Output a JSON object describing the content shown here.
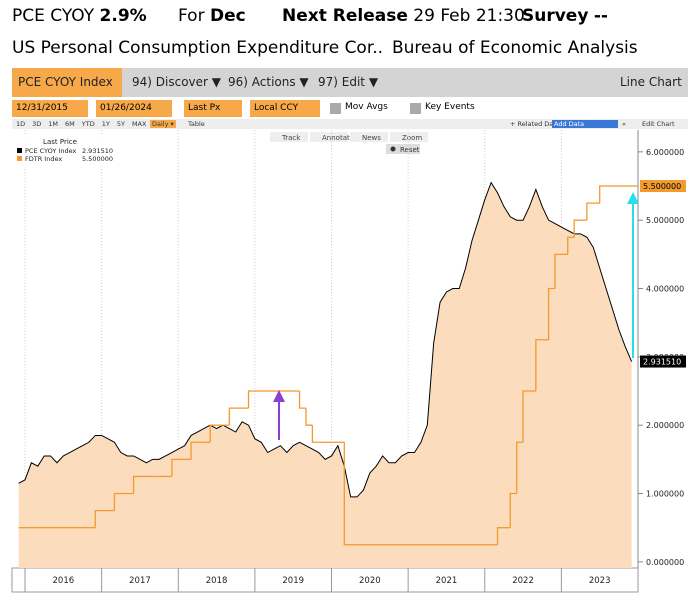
{
  "header": {
    "ticker": "PCE CYOY",
    "value": "2.9%",
    "for_label": "For",
    "period": "Dec",
    "next_release_label": "Next Release",
    "next_release": "29 Feb 21:30",
    "survey_label": "Survey",
    "survey": "--",
    "description": "US Personal Consumption Expenditure Cor..",
    "source": "Bureau of Economic Analysis"
  },
  "tabs": {
    "security": "PCE CYOY Index",
    "items": [
      "94) Discover ▼",
      "96) Actions ▼",
      "97) Edit ▼"
    ],
    "view": "Line Chart"
  },
  "controls": {
    "start_date": "12/31/2015",
    "end_date": "01/26/2024",
    "field": "Last Px",
    "currency": "Local CCY",
    "options": [
      "Mov Avgs",
      "Key Events"
    ],
    "periods": [
      "1D",
      "3D",
      "1M",
      "6M",
      "YTD",
      "1Y",
      "5Y",
      "MAX"
    ],
    "frequency": "Daily ▾",
    "table": "Table",
    "related": "+ Related Data",
    "add_data": "Add Data",
    "edit_chart": "Edit Chart"
  },
  "chart_tools": [
    "Track",
    "Annotate",
    "News",
    "Zoom"
  ],
  "reset": "Reset",
  "chart_data": {
    "type": "line",
    "legend_title": "Last Price",
    "x": [
      2015.917,
      2016.0,
      2016.083,
      2016.167,
      2016.25,
      2016.333,
      2016.417,
      2016.5,
      2016.583,
      2016.667,
      2016.75,
      2016.833,
      2016.917,
      2017.0,
      2017.083,
      2017.167,
      2017.25,
      2017.333,
      2017.417,
      2017.5,
      2017.583,
      2017.667,
      2017.75,
      2017.833,
      2017.917,
      2018.0,
      2018.083,
      2018.167,
      2018.25,
      2018.333,
      2018.417,
      2018.5,
      2018.583,
      2018.667,
      2018.75,
      2018.833,
      2018.917,
      2019.0,
      2019.083,
      2019.167,
      2019.25,
      2019.333,
      2019.417,
      2019.5,
      2019.583,
      2019.667,
      2019.75,
      2019.833,
      2019.917,
      2020.0,
      2020.083,
      2020.167,
      2020.25,
      2020.333,
      2020.417,
      2020.5,
      2020.583,
      2020.667,
      2020.75,
      2020.833,
      2020.917,
      2021.0,
      2021.083,
      2021.167,
      2021.25,
      2021.333,
      2021.417,
      2021.5,
      2021.583,
      2021.667,
      2021.75,
      2021.833,
      2021.917,
      2022.0,
      2022.083,
      2022.167,
      2022.25,
      2022.333,
      2022.417,
      2022.5,
      2022.583,
      2022.667,
      2022.75,
      2022.833,
      2022.917,
      2023.0,
      2023.083,
      2023.167,
      2023.25,
      2023.333,
      2023.417,
      2023.5,
      2023.583,
      2023.667,
      2023.75,
      2023.833,
      2023.917
    ],
    "series": [
      {
        "name": "PCE CYOY Index",
        "color": "#000000",
        "fill": "#fbdcbd",
        "last_label": "2.931510",
        "values": [
          1.15,
          1.2,
          1.45,
          1.4,
          1.55,
          1.55,
          1.45,
          1.55,
          1.6,
          1.65,
          1.7,
          1.75,
          1.85,
          1.85,
          1.8,
          1.75,
          1.6,
          1.55,
          1.55,
          1.5,
          1.45,
          1.5,
          1.5,
          1.55,
          1.6,
          1.65,
          1.7,
          1.85,
          1.9,
          1.95,
          2.0,
          1.95,
          2.0,
          1.95,
          1.9,
          2.05,
          2.0,
          1.8,
          1.75,
          1.6,
          1.65,
          1.7,
          1.6,
          1.7,
          1.75,
          1.7,
          1.65,
          1.6,
          1.5,
          1.55,
          1.7,
          1.4,
          0.95,
          0.95,
          1.05,
          1.3,
          1.4,
          1.55,
          1.45,
          1.45,
          1.55,
          1.6,
          1.6,
          1.75,
          2.0,
          3.2,
          3.8,
          3.95,
          4.0,
          4.0,
          4.3,
          4.7,
          5.0,
          5.3,
          5.55,
          5.4,
          5.2,
          5.05,
          5.0,
          5.0,
          5.2,
          5.45,
          5.2,
          5.0,
          4.95,
          4.9,
          4.85,
          4.8,
          4.8,
          4.75,
          4.6,
          4.3,
          4.0,
          3.7,
          3.4,
          3.15,
          2.93151
        ]
      },
      {
        "name": "FDTR Index",
        "color": "#f39a2e",
        "step": true,
        "last_label": "5.500000",
        "values": [
          0.5,
          0.5,
          0.5,
          0.5,
          0.5,
          0.5,
          0.5,
          0.5,
          0.5,
          0.5,
          0.5,
          0.5,
          0.75,
          0.75,
          0.75,
          1.0,
          1.0,
          1.0,
          1.25,
          1.25,
          1.25,
          1.25,
          1.25,
          1.25,
          1.5,
          1.5,
          1.5,
          1.75,
          1.75,
          1.75,
          2.0,
          2.0,
          2.0,
          2.25,
          2.25,
          2.25,
          2.5,
          2.5,
          2.5,
          2.5,
          2.5,
          2.5,
          2.5,
          2.5,
          2.25,
          2.0,
          1.75,
          1.75,
          1.75,
          1.75,
          1.75,
          0.25,
          0.25,
          0.25,
          0.25,
          0.25,
          0.25,
          0.25,
          0.25,
          0.25,
          0.25,
          0.25,
          0.25,
          0.25,
          0.25,
          0.25,
          0.25,
          0.25,
          0.25,
          0.25,
          0.25,
          0.25,
          0.25,
          0.25,
          0.25,
          0.5,
          0.5,
          1.0,
          1.75,
          2.5,
          2.5,
          3.25,
          3.25,
          4.0,
          4.5,
          4.5,
          4.75,
          5.0,
          5.0,
          5.25,
          5.25,
          5.5,
          5.5,
          5.5,
          5.5,
          5.5,
          5.5
        ]
      }
    ],
    "xlim": [
      2015.83,
      2024.0
    ],
    "xticks": [
      2016,
      2017,
      2018,
      2019,
      2020,
      2021,
      2022,
      2023
    ],
    "ylim": [
      -0.09,
      6.32
    ],
    "yticks": [
      {
        "value": 0,
        "label": "0.000000"
      },
      {
        "value": 1,
        "label": "1.000000"
      },
      {
        "value": 2,
        "label": "2.000000"
      },
      {
        "value": 3,
        "label": "3.000000"
      },
      {
        "value": 4,
        "label": "4.000000"
      },
      {
        "value": 5,
        "label": "5.000000"
      },
      {
        "value": 6,
        "label": "6.000000"
      }
    ],
    "y_axis_side": "right",
    "grid": true
  }
}
